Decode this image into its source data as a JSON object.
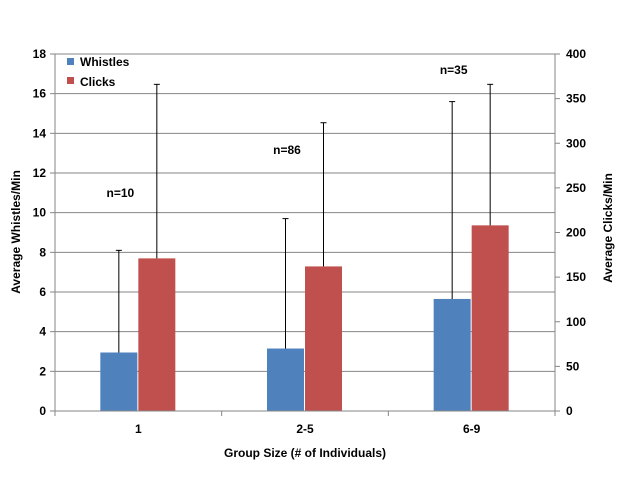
{
  "chart_data": {
    "type": "bar",
    "categories": [
      "1",
      "2-5",
      "6-9"
    ],
    "xlabel": "Group Size (# of Individuals)",
    "ylabel": "Average Whistles/Min",
    "y2label": "Average Clicks/Min",
    "ylim": [
      0,
      18
    ],
    "y2lim": [
      0,
      400
    ],
    "yticks": [
      0,
      2,
      4,
      6,
      8,
      10,
      12,
      14,
      16,
      18
    ],
    "y2ticks": [
      0,
      50,
      100,
      150,
      200,
      250,
      300,
      350,
      400
    ],
    "grid": true,
    "legend": "top-left",
    "series": [
      {
        "name": "Whistles",
        "axis": "left",
        "color": "#4f81bd",
        "values": [
          2.95,
          3.15,
          5.65
        ],
        "error_upper": [
          8.1,
          9.7,
          15.6
        ]
      },
      {
        "name": "Clicks",
        "axis": "right",
        "color": "#c0504d",
        "values": [
          171,
          162,
          208
        ],
        "error_upper": [
          366,
          323,
          366
        ]
      }
    ],
    "annotations": [
      "n=10",
      "n=86",
      "n=35"
    ]
  }
}
